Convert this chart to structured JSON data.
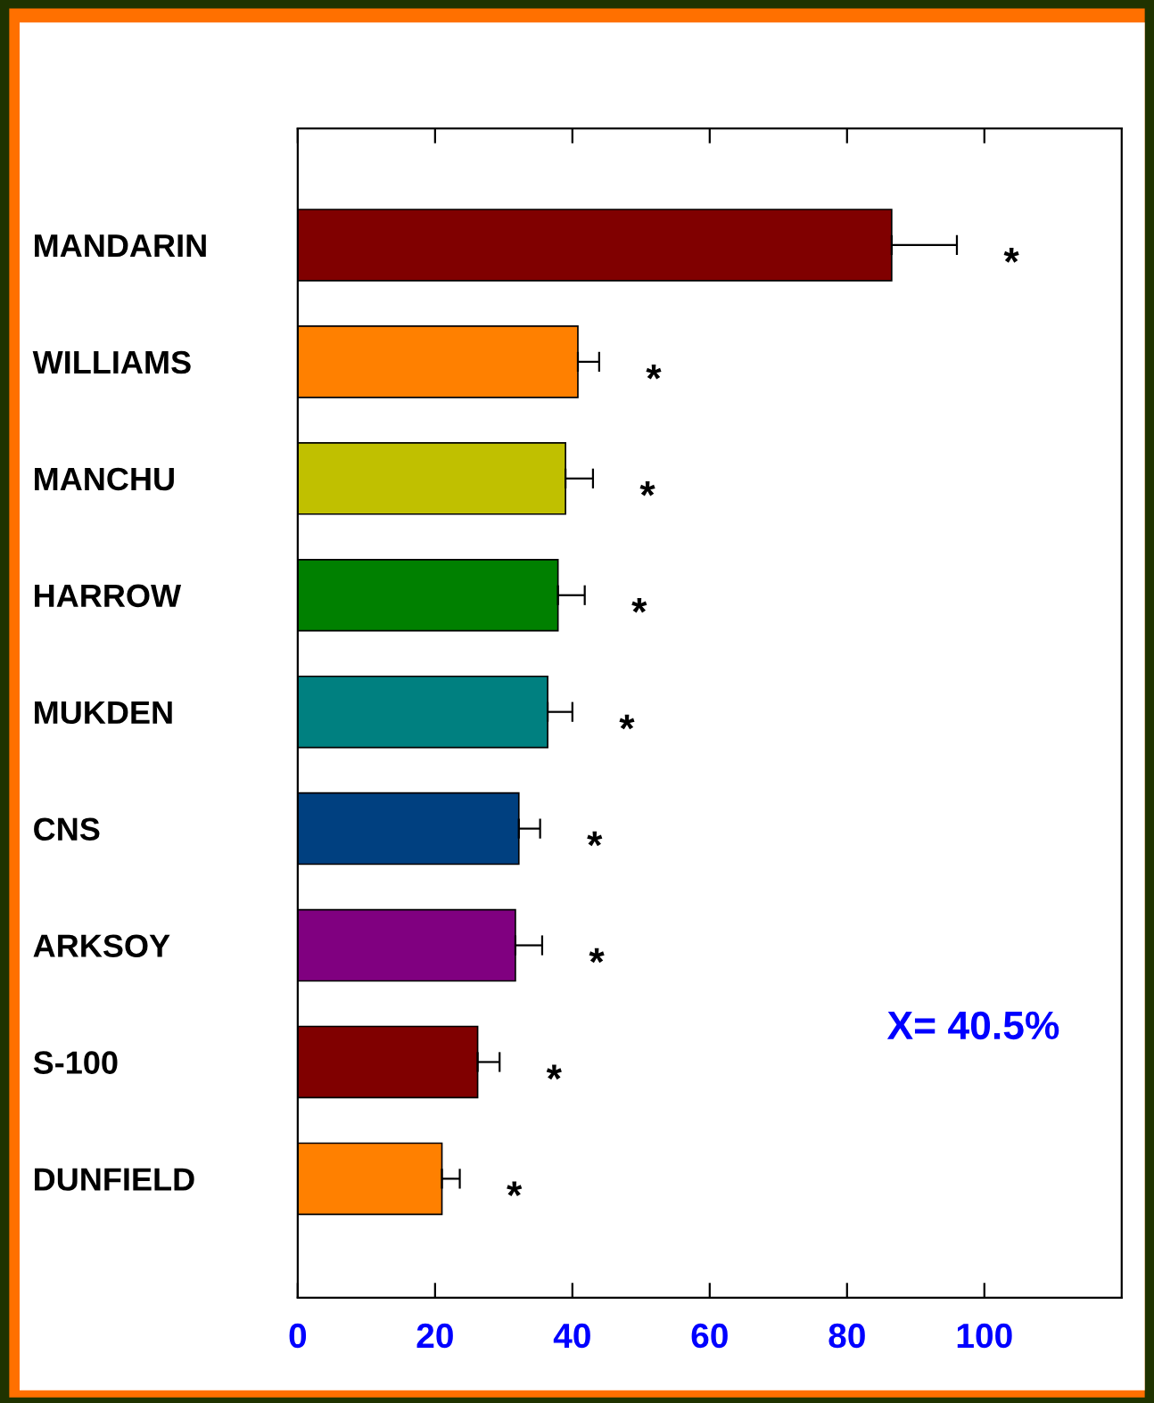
{
  "chart_data": {
    "type": "bar",
    "orientation": "horizontal",
    "categories": [
      "MANDARIN",
      "WILLIAMS",
      "MANCHU",
      "HARROW",
      "MUKDEN",
      "CNS",
      "ARKSOY",
      "S-100",
      "DUNFIELD"
    ],
    "values": [
      86.5,
      40.8,
      39,
      37.9,
      36.4,
      32.2,
      31.7,
      26.2,
      21
    ],
    "errors": [
      [
        86.5,
        96
      ],
      [
        40.8,
        43.9
      ],
      [
        39,
        43
      ],
      [
        37.9,
        41.8
      ],
      [
        36.4,
        40
      ],
      [
        32.2,
        35.3
      ],
      [
        31.7,
        35.6
      ],
      [
        26.2,
        29.4
      ],
      [
        21,
        23.6
      ]
    ],
    "colors": [
      "#800000",
      "#ff8000",
      "#c0c000",
      "#008000",
      "#008080",
      "#004080",
      "#800080",
      "#800000",
      "#ff8000"
    ],
    "xlim": [
      0,
      120
    ],
    "xticks": [
      0,
      20,
      40,
      60,
      80,
      100
    ],
    "grid": false,
    "annotations": [
      "*",
      "*",
      "*",
      "*",
      "*",
      "*",
      "*",
      "*",
      "*",
      "X= 40.5%"
    ]
  }
}
